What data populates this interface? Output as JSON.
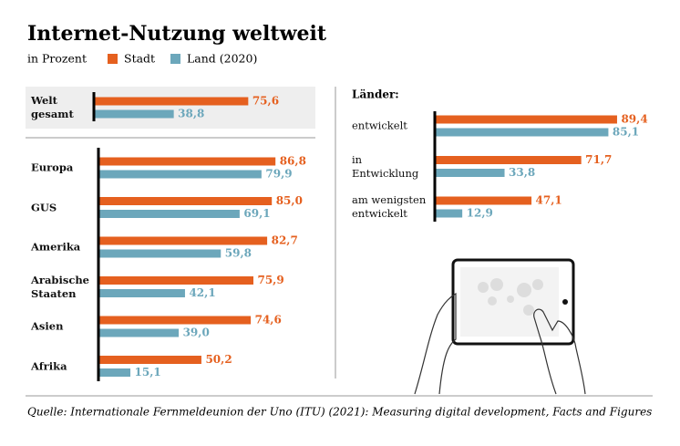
{
  "title": "Internet-Nutzung weltweit",
  "subtitle": "in Prozent",
  "source": "Quelle: Internationale Fernmeldeunion der Uno (ITU) (2021): Measuring digital development, Facts and Figures",
  "chart_data": [
    {
      "type": "hbar",
      "xlim": [
        0,
        100
      ],
      "categories": [
        "Welt\ngesamt"
      ],
      "series": [
        {
          "name": "Stadt",
          "color": "#e5601f",
          "values": [
            75.6
          ],
          "value_labels": [
            "75,6"
          ]
        },
        {
          "name": "Land (2020)",
          "color": "#6ca7bb",
          "values": [
            38.8
          ],
          "value_labels": [
            "38,8"
          ]
        }
      ]
    },
    {
      "type": "hbar",
      "xlim": [
        0,
        100
      ],
      "categories": [
        "Europa",
        "GUS",
        "Amerika",
        "Arabische\nStaaten",
        "Asien",
        "Afrika"
      ],
      "series": [
        {
          "color": "#e5601f",
          "values": [
            86.8,
            85.0,
            82.7,
            75.9,
            74.6,
            50.2
          ],
          "value_labels": [
            "86,8",
            "85,0",
            "82,7",
            "75,9",
            "74,6",
            "50,2"
          ]
        },
        {
          "color": "#6ca7bb",
          "values": [
            79.9,
            69.1,
            59.8,
            42.1,
            39.0,
            15.1
          ],
          "value_labels": [
            "79,9",
            "69,1",
            "59,8",
            "42,1",
            "39,0",
            "15,1"
          ]
        }
      ]
    },
    {
      "type": "hbar",
      "xlim": [
        0,
        100
      ],
      "title": "Länder:",
      "categories": [
        "entwickelt",
        "in\nEntwicklung",
        "am wenigsten\nentwickelt"
      ],
      "series": [
        {
          "color": "#e5601f",
          "values": [
            89.4,
            71.7,
            47.1
          ],
          "value_labels": [
            "89,4",
            "71,7",
            "47,1"
          ]
        },
        {
          "color": "#6ca7bb",
          "values": [
            85.1,
            33.8,
            12.9
          ],
          "value_labels": [
            "85,1",
            "33,8",
            "12,9"
          ]
        }
      ]
    }
  ]
}
